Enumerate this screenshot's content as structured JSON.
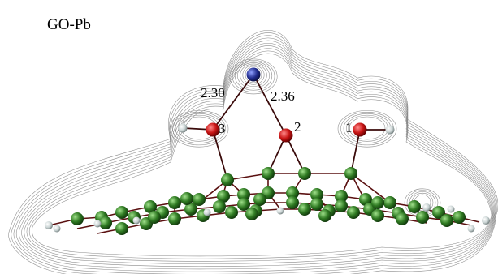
{
  "figure": {
    "title": "GO-Pb",
    "bond_lengths": [
      "2.30",
      "2.36"
    ],
    "oxygen_labels": [
      "3",
      "2",
      "1"
    ]
  },
  "colors": {
    "lead": "#1f2a8a",
    "oxygen": "#c81414",
    "carbon": "#2f7a22",
    "hydrogen": "#c9d3d3",
    "contour": "#8a8a8a",
    "bond": "#5a1010"
  },
  "atoms": {
    "lead_count": 1,
    "oxygen_count": 3
  }
}
